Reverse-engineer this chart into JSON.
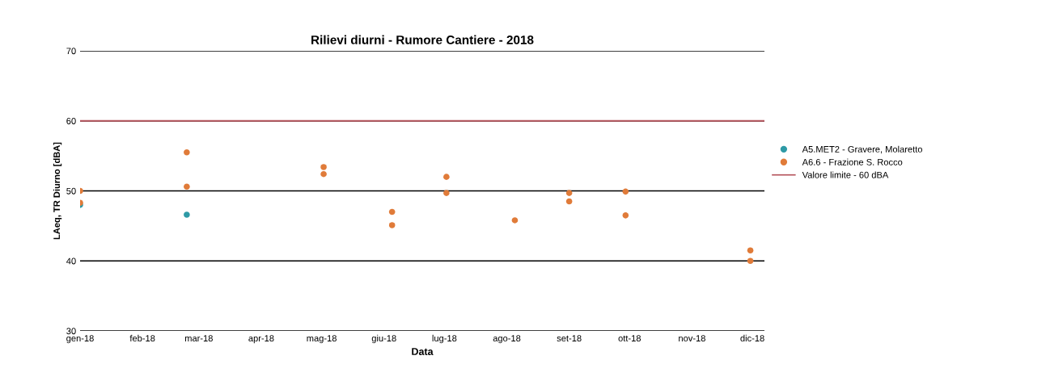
{
  "chart_data": {
    "type": "scatter",
    "title": "Rilievi diurni - Rumore Cantiere - 2018",
    "xlabel": "Data",
    "ylabel": "LAeq, TR Diurno [dBA]",
    "series": [
      {
        "name": "A5.MET2 - Gravere, Molaretto",
        "color": "#2e9aa6",
        "x": [
          "2018-01-01",
          "2018-02-23"
        ],
        "values": [
          48.0,
          46.6
        ]
      },
      {
        "name": "A6.6 - Frazione S. Rocco",
        "color": "#e07b39",
        "x": [
          "2018-01-01",
          "2018-01-01",
          "2018-02-23",
          "2018-02-23",
          "2018-05-02",
          "2018-05-02",
          "2018-06-05",
          "2018-06-05",
          "2018-07-02",
          "2018-07-02",
          "2018-08-05",
          "2018-09-01",
          "2018-09-01",
          "2018-09-29",
          "2018-09-29",
          "2018-11-30",
          "2018-11-30"
        ],
        "values": [
          50.0,
          48.3,
          55.5,
          50.6,
          53.4,
          52.4,
          47.0,
          45.1,
          52.0,
          49.7,
          45.8,
          49.7,
          48.5,
          49.9,
          46.5,
          41.5,
          40.0
        ]
      }
    ],
    "ref_lines": [
      {
        "axis": "y",
        "value": 60,
        "label": "Valore limite - 60 dBA",
        "color": "#b5545c"
      }
    ],
    "xlim": [
      "2018-01-01",
      "2018-12-07"
    ],
    "xticks": [
      {
        "value": "2018-01-01",
        "label": "gen-18"
      },
      {
        "value": "2018-02-01",
        "label": "feb-18"
      },
      {
        "value": "2018-03-01",
        "label": "mar-18"
      },
      {
        "value": "2018-04-01",
        "label": "apr-18"
      },
      {
        "value": "2018-05-01",
        "label": "mag-18"
      },
      {
        "value": "2018-06-01",
        "label": "giu-18"
      },
      {
        "value": "2018-07-01",
        "label": "lug-18"
      },
      {
        "value": "2018-08-01",
        "label": "ago-18"
      },
      {
        "value": "2018-09-01",
        "label": "set-18"
      },
      {
        "value": "2018-10-01",
        "label": "ott-18"
      },
      {
        "value": "2018-11-01",
        "label": "nov-18"
      },
      {
        "value": "2018-12-01",
        "label": "dic-18"
      }
    ],
    "ylim": [
      30,
      70
    ],
    "yticks": [
      30,
      40,
      50,
      60,
      70
    ],
    "grid": "y",
    "legend": "right",
    "marker": "circle"
  }
}
